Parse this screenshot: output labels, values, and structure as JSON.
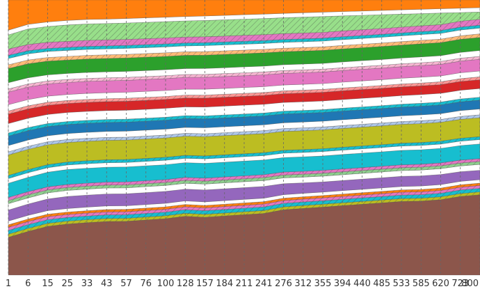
{
  "chart_data": {
    "type": "area",
    "title": "",
    "xlabel": "",
    "ylabel": "",
    "stacked": true,
    "grid": "vertical-dashed",
    "legend": "none",
    "x": [
      "1",
      "6",
      "15",
      "25",
      "33",
      "43",
      "57",
      "76",
      "100",
      "128",
      "157",
      "184",
      "211",
      "241",
      "276",
      "312",
      "355",
      "394",
      "440",
      "485",
      "533",
      "585",
      "620",
      "723",
      "800"
    ],
    "ylim": [
      0,
      1
    ],
    "series": [
      {
        "color": "#8c564b",
        "hatch": false,
        "values": [
          0.12,
          0.14,
          0.16,
          0.17,
          0.175,
          0.18,
          0.18,
          0.185,
          0.19,
          0.2,
          0.195,
          0.2,
          0.205,
          0.21,
          0.225,
          0.23,
          0.235,
          0.24,
          0.245,
          0.25,
          0.255,
          0.255,
          0.26,
          0.27,
          0.275
        ]
      },
      {
        "color": "#bcbd22",
        "hatch": true,
        "values": [
          0.01,
          0.01,
          0.01,
          0.01,
          0.01,
          0.01,
          0.01,
          0.01,
          0.01,
          0.01,
          0.01,
          0.01,
          0.01,
          0.01,
          0.01,
          0.01,
          0.01,
          0.01,
          0.01,
          0.01,
          0.01,
          0.01,
          0.01,
          0.01,
          0.01
        ]
      },
      {
        "color": "#17becf",
        "hatch": true,
        "values": [
          0.012,
          0.012,
          0.012,
          0.012,
          0.012,
          0.012,
          0.012,
          0.012,
          0.012,
          0.012,
          0.012,
          0.012,
          0.012,
          0.012,
          0.012,
          0.012,
          0.012,
          0.012,
          0.012,
          0.012,
          0.012,
          0.012,
          0.012,
          0.012,
          0.012
        ]
      },
      {
        "color": "#e377c2",
        "hatch": true,
        "values": [
          0.01,
          0.01,
          0.01,
          0.01,
          0.01,
          0.01,
          0.01,
          0.01,
          0.01,
          0.01,
          0.01,
          0.01,
          0.01,
          0.01,
          0.01,
          0.01,
          0.01,
          0.01,
          0.01,
          0.01,
          0.01,
          0.01,
          0.01,
          0.01,
          0.01
        ]
      },
      {
        "color": "#ff7f0e",
        "hatch": true,
        "values": [
          0.008,
          0.008,
          0.008,
          0.008,
          0.008,
          0.008,
          0.008,
          0.008,
          0.008,
          0.008,
          0.008,
          0.008,
          0.008,
          0.008,
          0.008,
          0.008,
          0.008,
          0.008,
          0.008,
          0.008,
          0.008,
          0.008,
          0.008,
          0.008,
          0.008
        ]
      },
      {
        "color": "#ffffff",
        "hatch": false,
        "values": [
          0.012,
          0.012,
          0.012,
          0.012,
          0.012,
          0.012,
          0.012,
          0.012,
          0.012,
          0.012,
          0.012,
          0.012,
          0.012,
          0.012,
          0.012,
          0.012,
          0.012,
          0.012,
          0.012,
          0.012,
          0.012,
          0.012,
          0.012,
          0.012,
          0.012
        ]
      },
      {
        "color": "#9467bd",
        "hatch": false,
        "values": [
          0.035,
          0.036,
          0.038,
          0.04,
          0.04,
          0.04,
          0.04,
          0.04,
          0.04,
          0.04,
          0.04,
          0.04,
          0.04,
          0.04,
          0.038,
          0.036,
          0.035,
          0.035,
          0.035,
          0.035,
          0.035,
          0.035,
          0.035,
          0.033,
          0.032
        ]
      },
      {
        "color": "#ffffff",
        "hatch": false,
        "values": [
          0.02,
          0.02,
          0.02,
          0.02,
          0.02,
          0.02,
          0.02,
          0.02,
          0.02,
          0.02,
          0.02,
          0.02,
          0.02,
          0.02,
          0.02,
          0.02,
          0.02,
          0.02,
          0.02,
          0.02,
          0.02,
          0.02,
          0.02,
          0.02,
          0.02
        ]
      },
      {
        "color": "#8ecf8e",
        "hatch": true,
        "values": [
          0.01,
          0.01,
          0.01,
          0.01,
          0.01,
          0.01,
          0.01,
          0.01,
          0.01,
          0.01,
          0.01,
          0.01,
          0.01,
          0.01,
          0.01,
          0.01,
          0.01,
          0.01,
          0.01,
          0.01,
          0.01,
          0.01,
          0.01,
          0.01,
          0.01
        ]
      },
      {
        "color": "#e377c2",
        "hatch": true,
        "values": [
          0.01,
          0.01,
          0.01,
          0.01,
          0.01,
          0.01,
          0.01,
          0.01,
          0.01,
          0.01,
          0.01,
          0.01,
          0.01,
          0.01,
          0.01,
          0.01,
          0.01,
          0.01,
          0.01,
          0.01,
          0.01,
          0.01,
          0.01,
          0.01,
          0.01
        ]
      },
      {
        "color": "#17becf",
        "hatch": false,
        "values": [
          0.045,
          0.046,
          0.048,
          0.05,
          0.05,
          0.05,
          0.05,
          0.05,
          0.05,
          0.05,
          0.05,
          0.05,
          0.05,
          0.05,
          0.05,
          0.05,
          0.05,
          0.05,
          0.05,
          0.05,
          0.05,
          0.05,
          0.05,
          0.05,
          0.05
        ]
      },
      {
        "color": "#ffffff",
        "hatch": false,
        "values": [
          0.015,
          0.015,
          0.015,
          0.015,
          0.015,
          0.015,
          0.015,
          0.015,
          0.015,
          0.015,
          0.015,
          0.015,
          0.015,
          0.015,
          0.015,
          0.015,
          0.015,
          0.015,
          0.015,
          0.015,
          0.015,
          0.015,
          0.015,
          0.015,
          0.015
        ]
      },
      {
        "color": "#17becf",
        "hatch": true,
        "values": [
          0.01,
          0.01,
          0.01,
          0.01,
          0.01,
          0.01,
          0.01,
          0.01,
          0.01,
          0.01,
          0.01,
          0.01,
          0.01,
          0.01,
          0.01,
          0.01,
          0.01,
          0.01,
          0.01,
          0.01,
          0.01,
          0.01,
          0.01,
          0.01,
          0.01
        ]
      },
      {
        "color": "#bcbd22",
        "hatch": false,
        "values": [
          0.065,
          0.065,
          0.065,
          0.065,
          0.065,
          0.065,
          0.065,
          0.065,
          0.065,
          0.065,
          0.065,
          0.065,
          0.065,
          0.065,
          0.065,
          0.065,
          0.065,
          0.065,
          0.065,
          0.065,
          0.065,
          0.065,
          0.065,
          0.065,
          0.065
        ]
      },
      {
        "color": "#aec7e8",
        "hatch": true,
        "values": [
          0.01,
          0.01,
          0.01,
          0.01,
          0.01,
          0.01,
          0.01,
          0.01,
          0.01,
          0.01,
          0.01,
          0.01,
          0.01,
          0.01,
          0.01,
          0.01,
          0.01,
          0.01,
          0.01,
          0.01,
          0.01,
          0.01,
          0.01,
          0.01,
          0.01
        ]
      },
      {
        "color": "#ffffff",
        "hatch": false,
        "values": [
          0.02,
          0.02,
          0.02,
          0.02,
          0.02,
          0.02,
          0.02,
          0.02,
          0.02,
          0.02,
          0.02,
          0.02,
          0.02,
          0.02,
          0.02,
          0.02,
          0.02,
          0.02,
          0.02,
          0.02,
          0.02,
          0.02,
          0.02,
          0.02,
          0.02
        ]
      },
      {
        "color": "#1f77b4",
        "hatch": false,
        "values": [
          0.03,
          0.03,
          0.03,
          0.03,
          0.03,
          0.03,
          0.03,
          0.03,
          0.03,
          0.03,
          0.03,
          0.03,
          0.03,
          0.03,
          0.03,
          0.03,
          0.03,
          0.03,
          0.03,
          0.03,
          0.03,
          0.03,
          0.03,
          0.03,
          0.03
        ]
      },
      {
        "color": "#17becf",
        "hatch": true,
        "values": [
          0.01,
          0.01,
          0.01,
          0.01,
          0.01,
          0.01,
          0.01,
          0.01,
          0.01,
          0.01,
          0.01,
          0.01,
          0.01,
          0.01,
          0.01,
          0.01,
          0.01,
          0.01,
          0.01,
          0.01,
          0.01,
          0.01,
          0.01,
          0.01,
          0.01
        ]
      },
      {
        "color": "#ffffff",
        "hatch": false,
        "values": [
          0.03,
          0.03,
          0.03,
          0.03,
          0.03,
          0.03,
          0.03,
          0.03,
          0.03,
          0.03,
          0.03,
          0.03,
          0.03,
          0.03,
          0.03,
          0.03,
          0.03,
          0.03,
          0.03,
          0.03,
          0.03,
          0.03,
          0.03,
          0.03,
          0.03
        ]
      },
      {
        "color": "#d62728",
        "hatch": false,
        "values": [
          0.03,
          0.03,
          0.03,
          0.03,
          0.03,
          0.03,
          0.03,
          0.03,
          0.03,
          0.03,
          0.03,
          0.03,
          0.03,
          0.03,
          0.03,
          0.03,
          0.03,
          0.03,
          0.03,
          0.03,
          0.03,
          0.03,
          0.03,
          0.03,
          0.03
        ]
      },
      {
        "color": "#ff9896",
        "hatch": true,
        "values": [
          0.01,
          0.01,
          0.01,
          0.01,
          0.01,
          0.01,
          0.01,
          0.01,
          0.01,
          0.01,
          0.01,
          0.01,
          0.01,
          0.01,
          0.01,
          0.01,
          0.01,
          0.01,
          0.01,
          0.01,
          0.01,
          0.01,
          0.01,
          0.01,
          0.01
        ]
      },
      {
        "color": "#ffffff",
        "hatch": false,
        "values": [
          0.02,
          0.02,
          0.02,
          0.02,
          0.02,
          0.02,
          0.02,
          0.02,
          0.02,
          0.02,
          0.02,
          0.02,
          0.02,
          0.02,
          0.02,
          0.02,
          0.02,
          0.02,
          0.02,
          0.02,
          0.02,
          0.02,
          0.02,
          0.02,
          0.02
        ]
      },
      {
        "color": "#e377c2",
        "hatch": false,
        "values": [
          0.04,
          0.04,
          0.04,
          0.04,
          0.04,
          0.04,
          0.04,
          0.04,
          0.04,
          0.04,
          0.04,
          0.04,
          0.04,
          0.04,
          0.04,
          0.04,
          0.04,
          0.04,
          0.04,
          0.04,
          0.04,
          0.04,
          0.04,
          0.04,
          0.04
        ]
      },
      {
        "color": "#f7b6d2",
        "hatch": true,
        "values": [
          0.01,
          0.01,
          0.01,
          0.01,
          0.01,
          0.01,
          0.01,
          0.01,
          0.01,
          0.01,
          0.01,
          0.01,
          0.01,
          0.01,
          0.01,
          0.01,
          0.01,
          0.01,
          0.01,
          0.01,
          0.01,
          0.01,
          0.01,
          0.01,
          0.01
        ]
      },
      {
        "color": "#ffffff",
        "hatch": false,
        "values": [
          0.02,
          0.02,
          0.02,
          0.02,
          0.02,
          0.02,
          0.02,
          0.02,
          0.02,
          0.02,
          0.02,
          0.02,
          0.02,
          0.02,
          0.02,
          0.02,
          0.02,
          0.02,
          0.02,
          0.02,
          0.02,
          0.02,
          0.02,
          0.02,
          0.02
        ]
      },
      {
        "color": "#2ca02c",
        "hatch": false,
        "values": [
          0.045,
          0.045,
          0.045,
          0.045,
          0.045,
          0.045,
          0.045,
          0.045,
          0.045,
          0.045,
          0.045,
          0.045,
          0.045,
          0.045,
          0.045,
          0.045,
          0.045,
          0.045,
          0.045,
          0.045,
          0.045,
          0.045,
          0.045,
          0.045,
          0.045
        ]
      },
      {
        "color": "#ffbb78",
        "hatch": true,
        "values": [
          0.012,
          0.012,
          0.012,
          0.012,
          0.012,
          0.012,
          0.012,
          0.012,
          0.012,
          0.012,
          0.012,
          0.012,
          0.012,
          0.012,
          0.012,
          0.012,
          0.012,
          0.012,
          0.012,
          0.012,
          0.012,
          0.012,
          0.012,
          0.012,
          0.012
        ]
      },
      {
        "color": "#ffffff",
        "hatch": false,
        "values": [
          0.02,
          0.02,
          0.02,
          0.02,
          0.02,
          0.02,
          0.02,
          0.02,
          0.02,
          0.02,
          0.02,
          0.02,
          0.02,
          0.02,
          0.02,
          0.02,
          0.02,
          0.02,
          0.02,
          0.02,
          0.02,
          0.02,
          0.02,
          0.02,
          0.02
        ]
      },
      {
        "color": "#17becf",
        "hatch": true,
        "values": [
          0.01,
          0.01,
          0.01,
          0.01,
          0.01,
          0.01,
          0.01,
          0.01,
          0.01,
          0.01,
          0.01,
          0.01,
          0.01,
          0.01,
          0.01,
          0.01,
          0.01,
          0.01,
          0.01,
          0.01,
          0.01,
          0.01,
          0.01,
          0.01,
          0.01
        ]
      },
      {
        "color": "#e377c2",
        "hatch": true,
        "values": [
          0.02,
          0.02,
          0.02,
          0.02,
          0.02,
          0.02,
          0.02,
          0.02,
          0.02,
          0.02,
          0.02,
          0.02,
          0.02,
          0.02,
          0.02,
          0.02,
          0.02,
          0.02,
          0.02,
          0.02,
          0.02,
          0.02,
          0.02,
          0.02,
          0.02
        ]
      },
      {
        "color": "#98df8a",
        "hatch": true,
        "values": [
          0.045,
          0.05,
          0.052,
          0.055,
          0.055,
          0.055,
          0.055,
          0.055,
          0.055,
          0.055,
          0.055,
          0.055,
          0.055,
          0.055,
          0.055,
          0.055,
          0.055,
          0.052,
          0.05,
          0.048,
          0.045,
          0.042,
          0.04,
          0.03,
          0.025
        ]
      },
      {
        "color": "#ffffff",
        "hatch": false,
        "values": [
          0.015,
          0.015,
          0.015,
          0.015,
          0.015,
          0.015,
          0.015,
          0.015,
          0.015,
          0.015,
          0.015,
          0.015,
          0.015,
          0.015,
          0.015,
          0.015,
          0.015,
          0.015,
          0.015,
          0.015,
          0.015,
          0.015,
          0.015,
          0.015,
          0.015
        ]
      },
      {
        "color": "#ff7f0e",
        "hatch": false,
        "values": [
          0.096,
          0.078,
          0.072,
          0.068,
          0.065,
          0.064,
          0.062,
          0.06,
          0.058,
          0.056,
          0.054,
          0.052,
          0.05,
          0.048,
          0.046,
          0.044,
          0.042,
          0.04,
          0.038,
          0.036,
          0.034,
          0.032,
          0.03,
          0.028,
          0.026
        ]
      }
    ]
  }
}
